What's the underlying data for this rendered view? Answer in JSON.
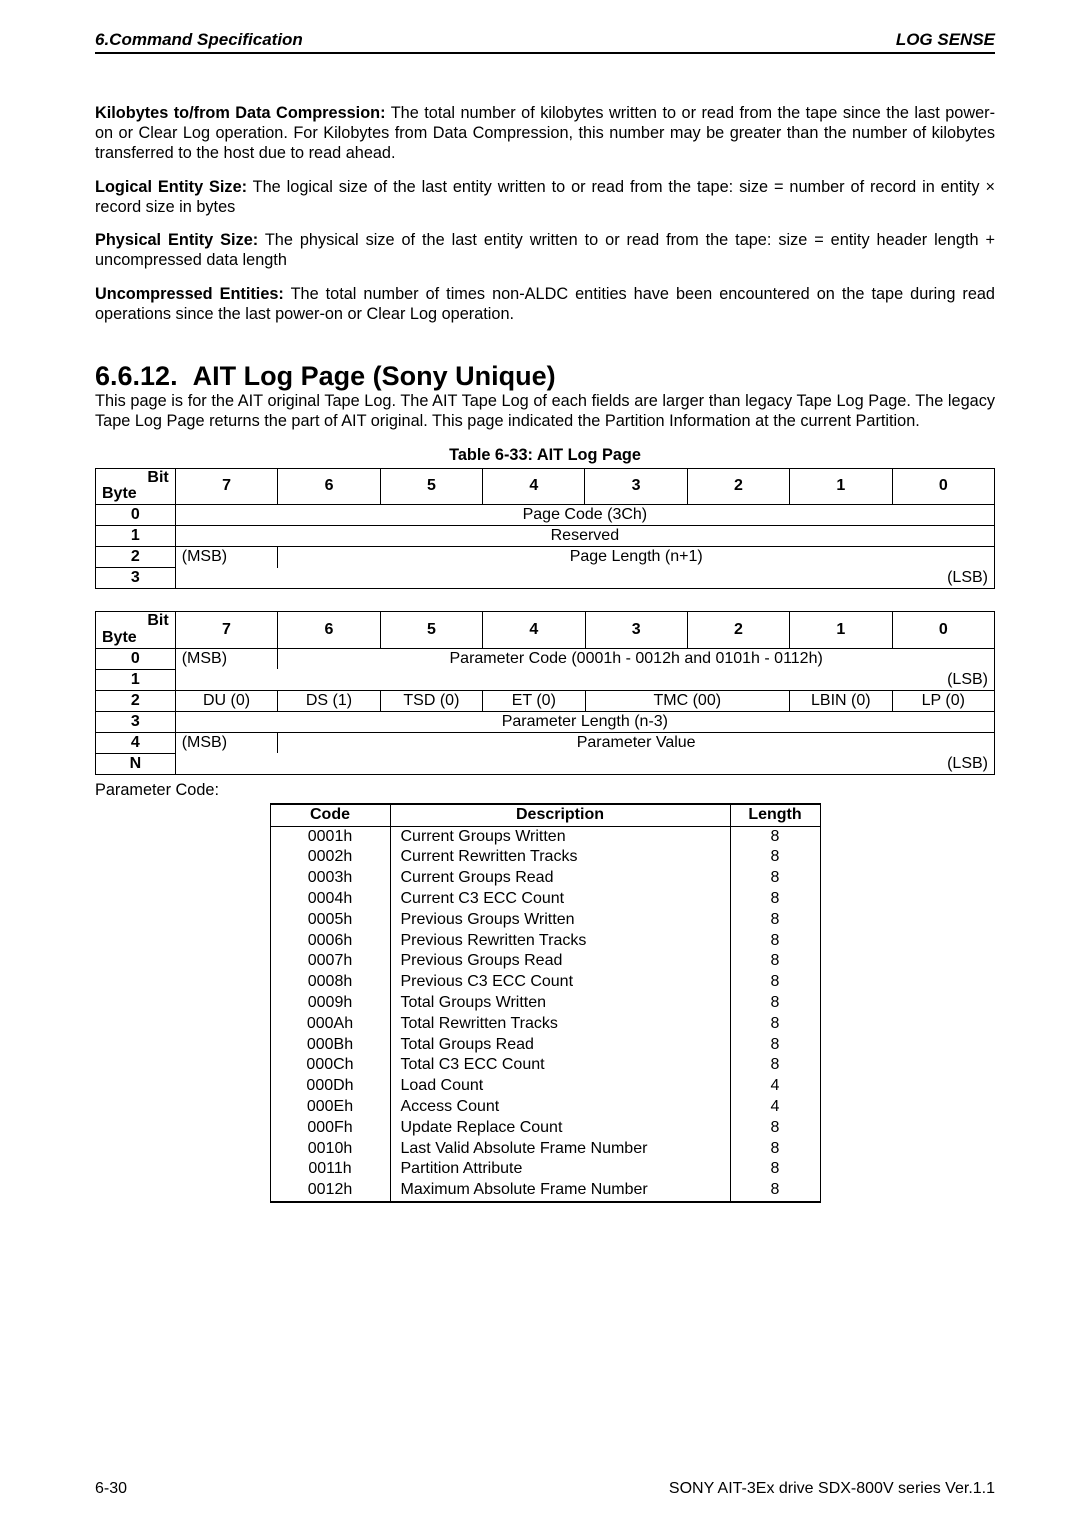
{
  "header": {
    "left": "6.Command Specification",
    "right": "LOG SENSE"
  },
  "definitions": [
    {
      "term": "Kilobytes to/from Data Compression:",
      "text": " The total number of kilobytes written to or read from the tape since the last power-on or Clear Log operation. For Kilobytes from Data Compression, this number may be greater than the number of kilobytes transferred to the host due to read ahead."
    },
    {
      "term": "Logical Entity Size:",
      "text": " The logical size of the last entity written to or read from the tape: size = number of record in entity × record size in bytes"
    },
    {
      "term": "Physical Entity Size:",
      "text": " The physical size of the last entity written to or read from the tape: size = entity header length + uncompressed data length"
    },
    {
      "term": "Uncompressed Entities:",
      "text": " The total number of times non-ALDC entities have been encountered on the tape during read operations since the last power-on or Clear Log operation."
    }
  ],
  "section": {
    "number": "6.6.12.",
    "title": "AIT Log Page (Sony Unique)",
    "intro": "This page is for the AIT original Tape Log. The AIT Tape Log of each fields are larger than legacy Tape Log Page. The legacy Tape Log Page returns the part of AIT original. This page indicated the Partition Information at the current Partition."
  },
  "table1": {
    "caption": "Table 6-33: AIT Log Page",
    "bit_byte": "Bit\nByte",
    "cols": [
      "7",
      "6",
      "5",
      "4",
      "3",
      "2",
      "1",
      "0"
    ],
    "rows": [
      {
        "byte": "0",
        "span": {
          "text": "Page Code (3Ch)",
          "cols": 8
        }
      },
      {
        "byte": "1",
        "span": {
          "text": "Reserved",
          "cols": 8
        }
      },
      {
        "byte": "2",
        "msb": "(MSB)",
        "span": {
          "text": "Page Length (n+1)",
          "cols": 7
        }
      },
      {
        "byte": "3",
        "lsb": "(LSB)"
      }
    ]
  },
  "table2": {
    "bit_byte": "Bit\nByte",
    "cols": [
      "7",
      "6",
      "5",
      "4",
      "3",
      "2",
      "1",
      "0"
    ],
    "rows": {
      "r0": {
        "byte": "0",
        "msb": "(MSB)",
        "spanText": "Parameter Code (0001h - 0012h and 0101h - 0112h)"
      },
      "r1": {
        "byte": "1",
        "lsb": "(LSB)"
      },
      "r2": {
        "byte": "2",
        "cells": [
          "DU (0)",
          "DS (1)",
          "TSD (0)",
          "ET (0)",
          "TMC (00)",
          "LBIN (0)",
          "LP (0)"
        ]
      },
      "r3": {
        "byte": "3",
        "spanText": "Parameter Length (n-3)"
      },
      "r4": {
        "byte": "4",
        "msb": "(MSB)",
        "spanText": "Parameter Value"
      },
      "rN": {
        "byte": "N",
        "lsb": "(LSB)"
      }
    }
  },
  "paramLabel": "Parameter Code:",
  "codes": {
    "headers": [
      "Code",
      "Description",
      "Length"
    ],
    "rows": [
      [
        "0001h",
        "Current Groups Written",
        "8"
      ],
      [
        "0002h",
        "Current Rewritten Tracks",
        "8"
      ],
      [
        "0003h",
        "Current Groups Read",
        "8"
      ],
      [
        "0004h",
        "Current C3 ECC Count",
        "8"
      ],
      [
        "0005h",
        "Previous Groups Written",
        "8"
      ],
      [
        "0006h",
        "Previous Rewritten Tracks",
        "8"
      ],
      [
        "0007h",
        "Previous Groups Read",
        "8"
      ],
      [
        "0008h",
        "Previous C3 ECC Count",
        "8"
      ],
      [
        "0009h",
        "Total Groups Written",
        "8"
      ],
      [
        "000Ah",
        "Total Rewritten Tracks",
        "8"
      ],
      [
        "000Bh",
        "Total Groups Read",
        "8"
      ],
      [
        "000Ch",
        "Total C3 ECC Count",
        "8"
      ],
      [
        "000Dh",
        "Load Count",
        "4"
      ],
      [
        "000Eh",
        "Access Count",
        "4"
      ],
      [
        "000Fh",
        "Update Replace Count",
        "8"
      ],
      [
        "0010h",
        "Last Valid Absolute Frame Number",
        "8"
      ],
      [
        "0011h",
        "Partition Attribute",
        "8"
      ],
      [
        "0012h",
        "Maximum Absolute Frame Number",
        "8"
      ]
    ]
  },
  "footer": {
    "left": "6-30",
    "right": "SONY AIT-3Ex drive SDX-800V series Ver.1.1"
  },
  "style": {
    "t1_colw": 103,
    "t2_colw": 103
  }
}
